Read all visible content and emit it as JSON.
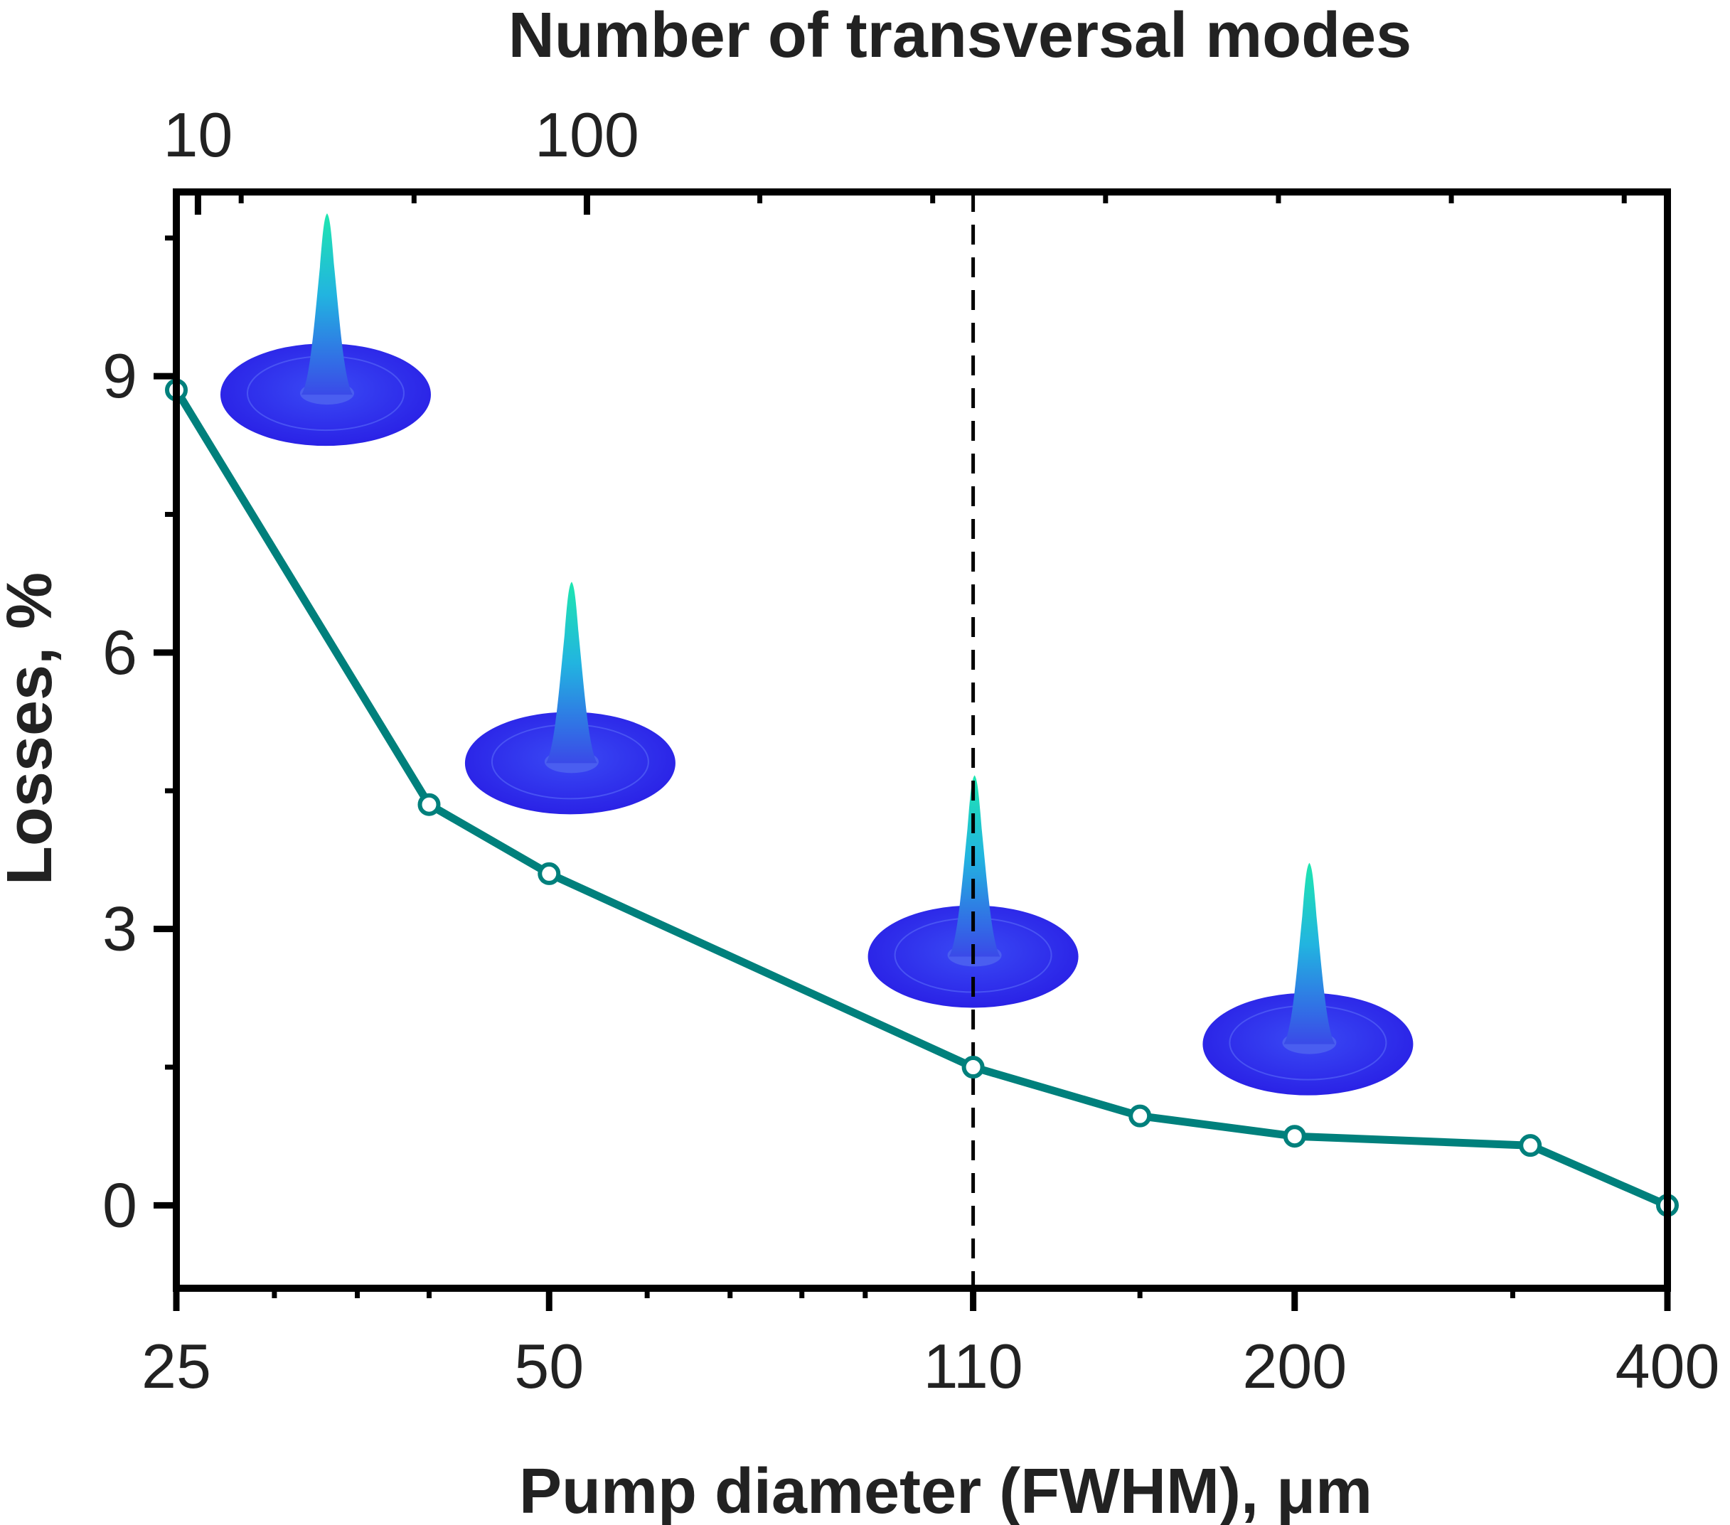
{
  "chart_data": {
    "type": "line",
    "xlabel": "Pump diameter (FWHM), μm",
    "ylabel": "Losses, %",
    "x2label": "Number of transversal modes",
    "x_scale": "log",
    "x_ticks": [
      25,
      50,
      110,
      200,
      400
    ],
    "x_tick_labels": [
      "25",
      "50",
      "110",
      "200",
      "400"
    ],
    "x2_ticks": [
      10,
      100
    ],
    "x2_tick_labels": [
      "10",
      "100"
    ],
    "y_ticks": [
      0,
      3,
      6,
      9
    ],
    "y_tick_labels": [
      "0",
      "3",
      "6",
      "9"
    ],
    "ylim": [
      -0.9,
      11.0
    ],
    "xlim": [
      25,
      400
    ],
    "grid": false,
    "reference_line": {
      "x": 110,
      "style": "dashed"
    },
    "series": [
      {
        "color": "#00807c",
        "marker": "open-circle",
        "x": [
          25,
          40,
          50,
          110,
          150,
          200,
          310,
          400
        ],
        "y": [
          8.85,
          4.35,
          3.6,
          1.5,
          0.97,
          0.75,
          0.65,
          0.0
        ]
      }
    ],
    "insets": [
      {
        "x": 33,
        "y": 8.8
      },
      {
        "x": 52,
        "y": 4.8
      },
      {
        "x": 110,
        "y": 2.7
      },
      {
        "x": 205,
        "y": 1.75
      }
    ],
    "colors": {
      "axis": "#000000",
      "line": "#00807c",
      "mode_base": "#2f2fee",
      "mode_peak": "#1ee6b0"
    }
  }
}
